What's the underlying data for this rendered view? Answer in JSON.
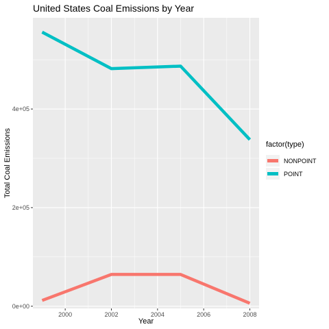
{
  "chart_data": {
    "type": "line",
    "title": "United States Coal Emissions by Year",
    "xlabel": "Year",
    "ylabel": "Total Coal Emissions",
    "x": [
      1999,
      2002,
      2005,
      2008
    ],
    "xticks": [
      2000,
      2002,
      2004,
      2006,
      2008
    ],
    "xtick_labels": [
      "2000",
      "2002",
      "2004",
      "2006",
      "2008"
    ],
    "yticks": [
      0,
      200000,
      400000
    ],
    "ytick_labels": [
      "0e+00",
      "2e+05",
      "4e+05"
    ],
    "xlim": [
      1998.6,
      2008.4
    ],
    "ylim": [
      -4500,
      585000
    ],
    "legend_title": "factor(type)",
    "legend_position": "right",
    "grid": true,
    "series": [
      {
        "name": "NONPOINT",
        "color": "#F8766D",
        "values": [
          11800,
          64500,
          64500,
          6000
        ]
      },
      {
        "name": "POINT",
        "color": "#00BFC4",
        "values": [
          556000,
          482000,
          487000,
          338000
        ]
      }
    ]
  }
}
